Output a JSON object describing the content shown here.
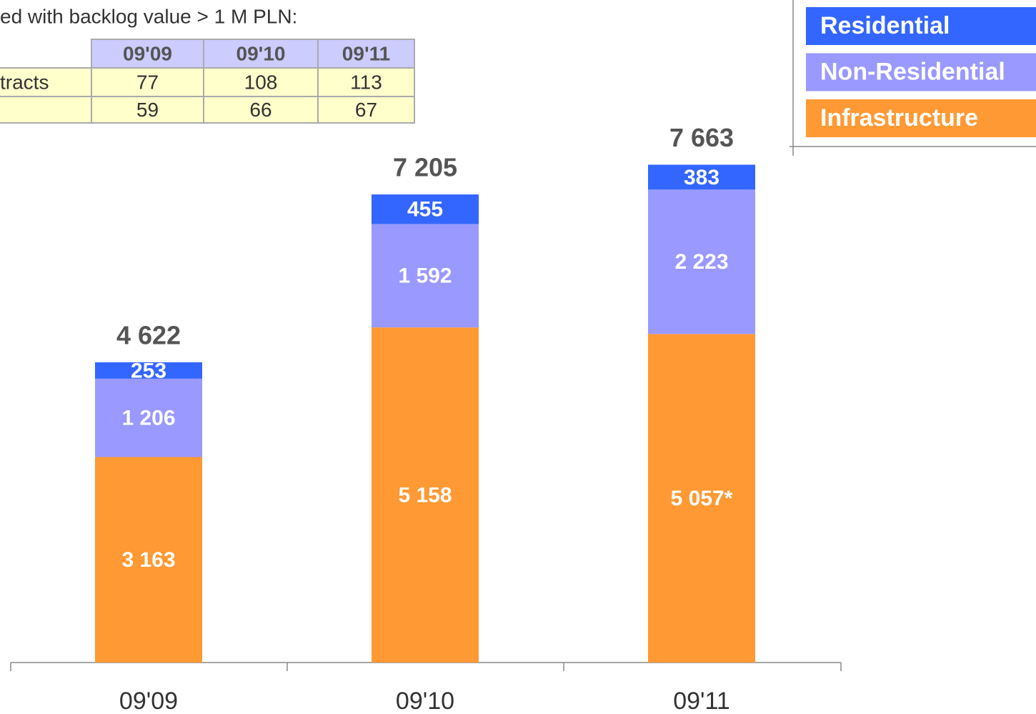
{
  "caption": "ed with backlog value > 1 M PLN:",
  "table": {
    "header": [
      "09'09",
      "09'10",
      "09'11"
    ],
    "rows": [
      {
        "label": "tracts",
        "cells": [
          77,
          108,
          113
        ]
      },
      {
        "cells": [
          59,
          66,
          67
        ]
      }
    ]
  },
  "chart_data": {
    "type": "bar",
    "stacked": true,
    "categories": [
      "09'09",
      "09'10",
      "09'11"
    ],
    "ylim": [
      0,
      10000
    ],
    "series": [
      {
        "name": "Infrastructure",
        "color": "#ff9933",
        "values": [
          3163,
          5158,
          5057
        ],
        "value_labels": [
          "3 163",
          "5 158",
          "5 057*"
        ]
      },
      {
        "name": "Non-Residential",
        "color": "#9999ff",
        "values": [
          1206,
          1592,
          2223
        ],
        "value_labels": [
          "1 206",
          "1 592",
          "2 223"
        ]
      },
      {
        "name": "Residential",
        "color": "#3366ff",
        "values": [
          253,
          455,
          383
        ],
        "value_labels": [
          "253",
          "455",
          "383"
        ]
      }
    ],
    "totals": [
      4622,
      7205,
      7663
    ],
    "total_labels": [
      "4 622",
      "7 205",
      "7 663"
    ]
  }
}
